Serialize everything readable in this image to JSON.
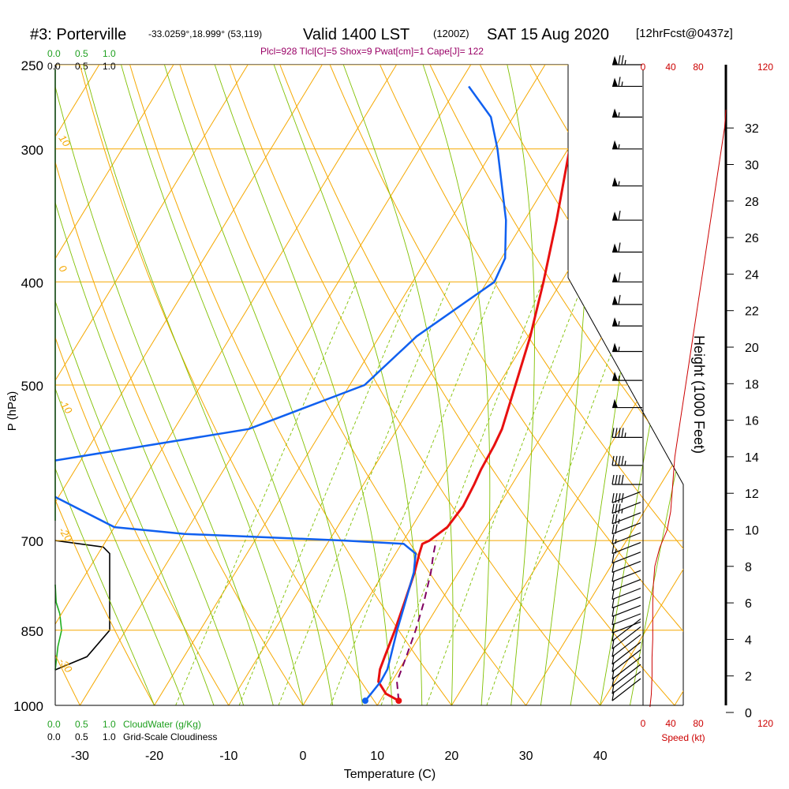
{
  "header": {
    "station": "#3: Porterville",
    "coords": "-33.0259°,18.999° (53,119)",
    "valid": "Valid 1400 LST",
    "utc": "(1200Z)",
    "date": "SAT 15 Aug 2020",
    "forecast": "[12hrFcst@0437z]",
    "indices": "Plcl=928 Tlcl[C]=5 Shox=9 Pwat[cm]=1 Cape[J]= 122"
  },
  "cloud_scale": {
    "top_green": [
      "0.0",
      "0.5",
      "1.0"
    ],
    "top_black": [
      "0.0",
      "0.5",
      "1.0"
    ],
    "bottom_green": [
      "0.0",
      "0.5",
      "1.0"
    ],
    "bottom_black": [
      "0.0",
      "0.5",
      "1.0"
    ],
    "cloudwater_label": "CloudWater (g/Kg)",
    "cloudiness_label": "Grid-Scale Cloudiness"
  },
  "colors": {
    "isotherm": "#f5a800",
    "dry_adiabat": "#f5a800",
    "moist_adiabat": "#80c000",
    "mixing_ratio": "#80c000",
    "temperature": "#e81010",
    "dewpoint": "#1060f0",
    "parcel": "#800060",
    "cloudwater": "#20b020",
    "indices_text": "#990066",
    "speed": "#cc0000"
  },
  "chart_data": {
    "type": "line",
    "title": "Skew-T log-P sounding",
    "xlabel": "Temperature (C)",
    "ylabel": "P (hPa)",
    "xlim": [
      -35,
      36
    ],
    "ylim": [
      1000,
      250
    ],
    "x_ticks": [
      -30,
      -20,
      -10,
      0,
      10,
      20,
      30,
      40
    ],
    "y_ticks": [
      250,
      300,
      400,
      500,
      700,
      850,
      1000
    ],
    "dry_adiabat_labels": [
      "10",
      "0",
      "-10",
      "-20",
      "-30"
    ],
    "moist_adiabat_labels": [
      "0",
      "10",
      "20",
      "30"
    ],
    "mixing_ratio_labels": [
      "1",
      "2",
      "3",
      "5",
      "8",
      "12",
      "20"
    ],
    "series": [
      {
        "name": "Temperature",
        "p": [
          990,
          975,
          950,
          925,
          900,
          850,
          800,
          750,
          720,
          705,
          700,
          680,
          650,
          620,
          600,
          570,
          550,
          500,
          450,
          400,
          350,
          300,
          280,
          262
        ],
        "t": [
          12.5,
          10.2,
          8.2,
          7.4,
          7.0,
          6.2,
          5.2,
          4.1,
          3.2,
          2.8,
          3.5,
          4.8,
          5.2,
          4.9,
          4.6,
          4.4,
          4.1,
          2.3,
          0.3,
          -2.4,
          -5.7,
          -9.8,
          -11.0,
          -12.5
        ]
      },
      {
        "name": "Dewpoint",
        "p": [
          990,
          975,
          950,
          925,
          900,
          850,
          800,
          750,
          720,
          705,
          700,
          690,
          680,
          600,
          550,
          500,
          450,
          400,
          380,
          350,
          300,
          280,
          262
        ],
        "t": [
          8.0,
          8.2,
          8.5,
          8.4,
          7.8,
          6.5,
          5.3,
          4.0,
          2.7,
          0.3,
          -8.0,
          -30.0,
          -40.0,
          -60.0,
          -30.0,
          -18.0,
          -15.0,
          -9.0,
          -9.5,
          -12.5,
          -19.5,
          -23.0,
          -28.5
        ]
      },
      {
        "name": "Parcel",
        "p": [
          990,
          950,
          900,
          850,
          800,
          750,
          720,
          700
        ],
        "t": [
          12.5,
          10.7,
          9.9,
          9.0,
          7.8,
          6.3,
          5.1,
          4.4
        ]
      },
      {
        "name": "Grid-Scale Cloudiness",
        "p": [
          926,
          900,
          850,
          720,
          710,
          700
        ],
        "c": [
          0.0,
          0.35,
          0.6,
          0.6,
          0.53,
          0.0
        ]
      },
      {
        "name": "CloudWater",
        "p": [
          926,
          880,
          850,
          820,
          800,
          770
        ],
        "q": [
          0.0,
          0.03,
          0.07,
          0.05,
          0.01,
          0.0
        ]
      },
      {
        "name": "Wind Speed",
        "height_kft": [
          0.3,
          1,
          2,
          3,
          4,
          5,
          6,
          7,
          8,
          9,
          10,
          11,
          12,
          13,
          14,
          16,
          18,
          20,
          22,
          24,
          26,
          28,
          30,
          32,
          33
        ],
        "speed_kt": [
          10,
          12,
          13,
          13,
          14,
          14,
          14,
          15,
          17,
          24,
          35,
          40,
          42,
          44,
          46,
          54,
          62,
          70,
          78,
          86,
          94,
          102,
          110,
          118,
          120
        ]
      }
    ],
    "height_axis": {
      "label": "Height (1000 Feet)",
      "ticks": [
        "0",
        "2",
        "4",
        "6",
        "8",
        "10",
        "12",
        "14",
        "16",
        "18",
        "20",
        "22",
        "24",
        "26",
        "28",
        "30",
        "32"
      ]
    },
    "speed_axis": {
      "label": "Speed (kt)",
      "ticks": [
        "0",
        "40",
        "80",
        "120"
      ]
    },
    "wind_barbs": {
      "speeds_kt": [
        10,
        10,
        10,
        10,
        10,
        10,
        10,
        10,
        10,
        12,
        12,
        12,
        13,
        13,
        13,
        13,
        14,
        14,
        15,
        16,
        20,
        25,
        35,
        40,
        40,
        45,
        45,
        50,
        55,
        55,
        55,
        60,
        60,
        60,
        60,
        55,
        55,
        55,
        65,
        75
      ],
      "pressures_hpa": [
        990,
        975,
        960,
        945,
        930,
        915,
        900,
        885,
        870,
        855,
        840,
        825,
        810,
        795,
        780,
        765,
        750,
        735,
        720,
        705,
        690,
        675,
        660,
        645,
        620,
        595,
        560,
        525,
        495,
        465,
        440,
        420,
        400,
        375,
        350,
        325,
        300,
        280,
        262,
        250
      ]
    }
  }
}
